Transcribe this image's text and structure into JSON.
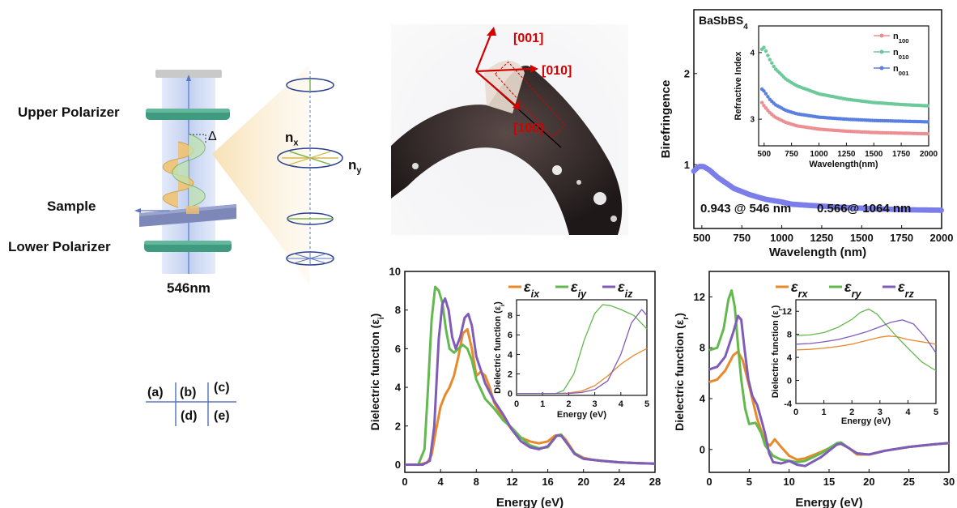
{
  "panel_a": {
    "upper_polarizer": "Upper Polarizer",
    "sample": "Sample",
    "lower_polarizer": "Lower Polarizer",
    "wavelength": "546nm",
    "delta": "Δ",
    "nx": "n",
    "nx_sub": "x",
    "ny": "n",
    "ny_sub": "y"
  },
  "panel_b": {
    "dir_001": "[001]",
    "dir_010": "[010]",
    "dir_100": "[100]",
    "accent": "#d40000"
  },
  "layout_key": {
    "a": "(a)",
    "b": "(b)",
    "c": "(c)",
    "d": "(d)",
    "e": "(e)"
  },
  "chart_data": [
    {
      "id": "birefringence",
      "type": "scatter",
      "title": "BaSbBS",
      "title_sub": "4",
      "xlabel": "Wavelength (nm)",
      "ylabel": "Birefringence",
      "xlim": [
        450,
        2000
      ],
      "ylim": [
        0.3,
        2.7
      ],
      "xticks": [
        500,
        750,
        1000,
        1250,
        1500,
        1750,
        2000
      ],
      "yticks": [
        1,
        2
      ],
      "annotation_1": "0.943 @ 546 nm",
      "annotation_2": "0.566@ 1064 nm",
      "series": [
        {
          "color": "#7b7ee8",
          "x": [
            450,
            480,
            510,
            546,
            600,
            700,
            800,
            900,
            1000,
            1064,
            1200,
            1400,
            1600,
            1800,
            2000
          ],
          "y": [
            0.93,
            0.98,
            0.98,
            0.943,
            0.86,
            0.74,
            0.67,
            0.62,
            0.59,
            0.566,
            0.55,
            0.53,
            0.515,
            0.505,
            0.5
          ]
        }
      ],
      "inset": {
        "xlabel": "Wavelength(nm)",
        "ylabel": "Refractive Index",
        "xlim": [
          450,
          2000
        ],
        "ylim": [
          2.6,
          4.4
        ],
        "xticks": [
          500,
          750,
          1000,
          1250,
          1500,
          1750,
          2000
        ],
        "yticks": [
          3,
          4
        ],
        "series": [
          {
            "name": "n",
            "name_sub": "100",
            "color": "#ec8f92",
            "x": [
              480,
              500,
              550,
              600,
              700,
              800,
              1000,
              1250,
              1500,
              1750,
              2000
            ],
            "y": [
              3.25,
              3.2,
              3.1,
              3.03,
              2.95,
              2.9,
              2.85,
              2.82,
              2.8,
              2.79,
              2.78
            ]
          },
          {
            "name": "n",
            "name_sub": "010",
            "color": "#6cc99a",
            "x": [
              480,
              500,
              550,
              600,
              700,
              800,
              1000,
              1250,
              1500,
              1750,
              2000
            ],
            "y": [
              4.05,
              4.08,
              3.9,
              3.76,
              3.6,
              3.5,
              3.38,
              3.3,
              3.25,
              3.22,
              3.2
            ]
          },
          {
            "name": "n",
            "name_sub": "001",
            "color": "#5a7fe0",
            "x": [
              480,
              500,
              550,
              600,
              700,
              800,
              1000,
              1250,
              1500,
              1750,
              2000
            ],
            "y": [
              3.45,
              3.42,
              3.3,
              3.22,
              3.13,
              3.08,
              3.03,
              3.0,
              2.98,
              2.97,
              2.96
            ]
          }
        ]
      }
    },
    {
      "id": "imaginary",
      "type": "line",
      "xlabel": "Energy (eV)",
      "ylabel": "Dielectric function (ε",
      "ylabel_sub": "i",
      "xlim": [
        0,
        28
      ],
      "ylim": [
        -0.4,
        10
      ],
      "xticks": [
        0,
        4,
        8,
        12,
        16,
        20,
        24,
        28
      ],
      "yticks": [
        0,
        2,
        4,
        6,
        8,
        10
      ],
      "series": [
        {
          "name": "ε",
          "name_sub": "ix",
          "color": "#e8892b",
          "x": [
            0,
            1.5,
            2.5,
            3,
            3.5,
            4,
            4.5,
            5,
            5.5,
            6,
            6.5,
            7,
            7.5,
            8,
            8.5,
            9,
            9.5,
            10,
            11,
            12,
            13,
            14,
            15,
            16,
            16.8,
            17.5,
            18,
            19,
            20,
            21,
            22,
            24,
            26,
            28
          ],
          "y": [
            0,
            0,
            0.1,
            0.5,
            1.8,
            3.0,
            3.6,
            4.0,
            4.6,
            5.6,
            6.8,
            7.0,
            6.0,
            4.6,
            4.8,
            4.6,
            4.0,
            3.2,
            2.4,
            1.8,
            1.4,
            1.2,
            1.1,
            1.2,
            1.5,
            1.55,
            1.3,
            0.6,
            0.35,
            0.25,
            0.2,
            0.12,
            0.08,
            0.05
          ]
        },
        {
          "name": "ε",
          "name_sub": "iy",
          "color": "#63b94e",
          "x": [
            0,
            1.5,
            2.2,
            2.6,
            3.0,
            3.4,
            3.8,
            4.2,
            4.6,
            5,
            5.5,
            6,
            6.5,
            7,
            7.5,
            8,
            9,
            10,
            11,
            12,
            13,
            14,
            15,
            16,
            17,
            17.5,
            18,
            19,
            20,
            22,
            24,
            26,
            28
          ],
          "y": [
            0,
            0,
            0.8,
            4.0,
            7.5,
            9.2,
            9.0,
            8.4,
            7.0,
            6.0,
            5.8,
            6.0,
            6.2,
            6.0,
            5.4,
            4.4,
            3.4,
            2.9,
            2.3,
            1.9,
            1.4,
            1.0,
            0.85,
            0.9,
            1.5,
            1.55,
            1.2,
            0.6,
            0.3,
            0.2,
            0.12,
            0.08,
            0.05
          ]
        },
        {
          "name": "ε",
          "name_sub": "iz",
          "color": "#7f5cb8",
          "x": [
            0,
            2,
            2.8,
            3.3,
            3.8,
            4.2,
            4.5,
            4.9,
            5.3,
            5.7,
            6.2,
            6.7,
            7.1,
            7.5,
            8,
            9,
            10,
            11,
            12,
            13,
            14,
            15,
            16,
            17,
            17.5,
            18,
            19,
            20,
            22,
            24,
            26,
            28
          ],
          "y": [
            0,
            0,
            0.2,
            2.0,
            6.5,
            8.3,
            8.6,
            8.0,
            6.6,
            6.0,
            6.6,
            7.6,
            7.8,
            7.2,
            5.6,
            4.2,
            3.3,
            2.6,
            1.8,
            1.2,
            0.9,
            0.8,
            0.95,
            1.5,
            1.5,
            1.2,
            0.55,
            0.3,
            0.2,
            0.12,
            0.08,
            0.05
          ]
        }
      ],
      "inset": {
        "xlabel": "Energy (eV)",
        "ylabel": "Dielectric function (ε",
        "ylabel_sub": "i",
        "xlim": [
          0,
          5
        ],
        "ylim": [
          -0.2,
          9.6
        ],
        "xticks": [
          0,
          1,
          2,
          3,
          4,
          5
        ],
        "yticks": [
          0,
          2,
          4,
          6,
          8
        ],
        "series": [
          {
            "color": "#e8892b",
            "x": [
              0,
              1.5,
              2,
              2.5,
              3,
              3.5,
              4,
              4.5,
              5
            ],
            "y": [
              0,
              0,
              0.05,
              0.25,
              0.8,
              1.8,
              3.0,
              3.9,
              4.6
            ]
          },
          {
            "color": "#63b94e",
            "x": [
              0,
              1.5,
              1.8,
              2.2,
              2.6,
              3.0,
              3.3,
              3.6,
              4.0,
              4.5,
              5
            ],
            "y": [
              0,
              0,
              0.3,
              2.0,
              5.5,
              8.2,
              9.1,
              9.0,
              8.6,
              8.0,
              6.6
            ]
          },
          {
            "color": "#7f5cb8",
            "x": [
              0,
              2,
              2.5,
              3,
              3.5,
              4,
              4.4,
              4.8,
              5
            ],
            "y": [
              0,
              0,
              0.1,
              0.4,
              1.3,
              4.0,
              7.2,
              8.6,
              8.0
            ]
          }
        ]
      }
    },
    {
      "id": "real",
      "type": "line",
      "xlabel": "Energy (eV)",
      "ylabel": "Dielectric function (ε",
      "ylabel_sub": "r",
      "xlim": [
        0,
        30
      ],
      "ylim": [
        -1.8,
        14
      ],
      "xticks": [
        0,
        5,
        10,
        15,
        20,
        25,
        30
      ],
      "yticks": [
        0,
        4,
        8,
        12
      ],
      "series": [
        {
          "name": "ε",
          "name_sub": "rx",
          "color": "#e8892b",
          "x": [
            0,
            1,
            2,
            3,
            3.6,
            4.2,
            5,
            6,
            7,
            7.6,
            8.2,
            9,
            10,
            11,
            12,
            14,
            16,
            16.5,
            17.5,
            18.5,
            20,
            22,
            25,
            28,
            30
          ],
          "y": [
            5.3,
            5.5,
            6.2,
            7.4,
            7.7,
            7.0,
            5.0,
            2.4,
            0.6,
            0.3,
            0.8,
            0.2,
            -0.5,
            -0.8,
            -0.7,
            -0.2,
            0.4,
            0.45,
            0.1,
            -0.4,
            -0.4,
            -0.1,
            0.2,
            0.4,
            0.5
          ]
        },
        {
          "name": "ε",
          "name_sub": "ry",
          "color": "#63b94e",
          "x": [
            0,
            1,
            1.8,
            2.4,
            2.8,
            3.2,
            3.6,
            4,
            4.5,
            5,
            5.8,
            6.5,
            7,
            8,
            9,
            10,
            11,
            12,
            14,
            16,
            16.5,
            17.5,
            18.5,
            20,
            22,
            25,
            28,
            30
          ],
          "y": [
            7.8,
            8.0,
            9.5,
            11.8,
            12.5,
            11.2,
            8.2,
            5.5,
            3.2,
            2.0,
            2.1,
            1.3,
            0.3,
            -0.5,
            -0.8,
            -0.9,
            -1.0,
            -0.9,
            -0.3,
            0.5,
            0.55,
            0.1,
            -0.3,
            -0.4,
            -0.1,
            0.2,
            0.4,
            0.5
          ]
        },
        {
          "name": "ε",
          "name_sub": "rz",
          "color": "#7f5cb8",
          "x": [
            0,
            1,
            2,
            3,
            3.6,
            4,
            4.4,
            4.9,
            5.4,
            6,
            6.5,
            7,
            7.5,
            8,
            9,
            10,
            11,
            12,
            14,
            16,
            16.5,
            17.5,
            18.5,
            20,
            22,
            25,
            28,
            30
          ],
          "y": [
            6.3,
            6.5,
            7.3,
            9.2,
            10.5,
            10.2,
            8.0,
            5.5,
            4.2,
            3.5,
            2.4,
            1.2,
            -0.3,
            -1.0,
            -1.1,
            -0.9,
            -1.2,
            -1.3,
            -0.6,
            0.4,
            0.45,
            0.1,
            -0.3,
            -0.4,
            -0.1,
            0.2,
            0.4,
            0.5
          ]
        }
      ],
      "inset": {
        "xlabel": "Energy (eV)",
        "ylabel": "Dielectric function (ε",
        "ylabel_sub": "r",
        "xlim": [
          0,
          5
        ],
        "ylim": [
          -4,
          14
        ],
        "xticks": [
          0,
          1,
          2,
          3,
          4,
          5
        ],
        "yticks": [
          -4,
          0,
          4,
          8,
          12
        ],
        "series": [
          {
            "color": "#e8892b",
            "x": [
              0,
              0.5,
              1,
              1.5,
              2,
              2.5,
              3,
              3.3,
              3.6,
              4,
              4.5,
              5
            ],
            "y": [
              5.3,
              5.4,
              5.6,
              5.9,
              6.3,
              6.9,
              7.5,
              7.7,
              7.6,
              7.1,
              6.7,
              6.3
            ]
          },
          {
            "color": "#63b94e",
            "x": [
              0,
              0.5,
              1,
              1.5,
              2,
              2.3,
              2.6,
              2.9,
              3.2,
              3.6,
              4,
              4.5,
              5
            ],
            "y": [
              7.8,
              7.9,
              8.3,
              9.2,
              10.6,
              11.8,
              12.4,
              11.5,
              9.8,
              7.6,
              5.6,
              3.2,
              1.7
            ]
          },
          {
            "color": "#7f5cb8",
            "x": [
              0,
              0.5,
              1,
              1.5,
              2,
              2.5,
              3,
              3.4,
              3.8,
              4.2,
              4.6,
              5
            ],
            "y": [
              6.3,
              6.4,
              6.7,
              7.1,
              7.7,
              8.4,
              9.3,
              10.1,
              10.5,
              9.8,
              7.6,
              4.8
            ]
          }
        ]
      }
    }
  ]
}
